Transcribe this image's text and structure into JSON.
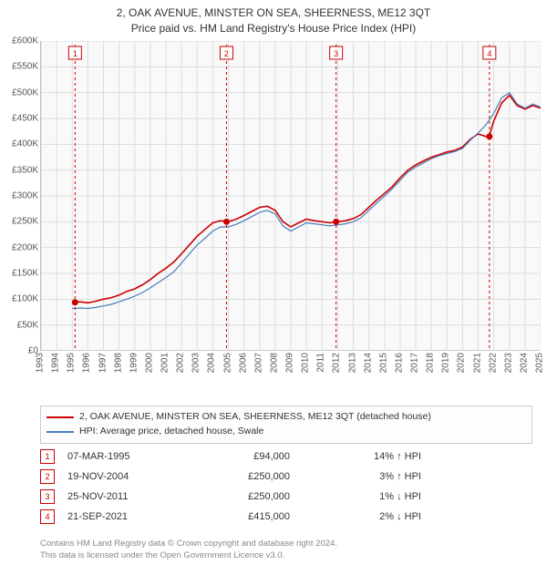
{
  "title_lines": [
    "2, OAK AVENUE, MINSTER ON SEA, SHEERNESS, ME12 3QT",
    "Price paid vs. HM Land Registry's House Price Index (HPI)"
  ],
  "chart": {
    "type": "line",
    "background_color": "#f9f9f9",
    "grid_color": "#dddddd",
    "axis_color": "#bbbbbb",
    "y_axis": {
      "min": 0,
      "max": 600000,
      "tick_step": 50000,
      "tick_labels": [
        "£0",
        "£50K",
        "£100K",
        "£150K",
        "£200K",
        "£250K",
        "£300K",
        "£350K",
        "£400K",
        "£450K",
        "£500K",
        "£550K",
        "£600K"
      ]
    },
    "x_axis": {
      "min": 1993,
      "max": 2025,
      "tick_step": 1,
      "tick_labels": [
        "1993",
        "1994",
        "1995",
        "1996",
        "1997",
        "1998",
        "1999",
        "2000",
        "2001",
        "2002",
        "2003",
        "2004",
        "2005",
        "2006",
        "2007",
        "2008",
        "2009",
        "2010",
        "2011",
        "2012",
        "2013",
        "2014",
        "2015",
        "2016",
        "2017",
        "2018",
        "2019",
        "2020",
        "2021",
        "2022",
        "2023",
        "2024",
        "2025"
      ]
    },
    "series": [
      {
        "name": "property",
        "label": "2, OAK AVENUE, MINSTER ON SEA, SHEERNESS, ME12 3QT (detached house)",
        "color": "#cc0000",
        "line_width": 1.6,
        "points": [
          [
            1995.0,
            94000
          ],
          [
            1995.5,
            95000
          ],
          [
            1996.0,
            93000
          ],
          [
            1996.5,
            96000
          ],
          [
            1997.0,
            100000
          ],
          [
            1997.5,
            103000
          ],
          [
            1998.0,
            108000
          ],
          [
            1998.5,
            115000
          ],
          [
            1999.0,
            120000
          ],
          [
            1999.5,
            128000
          ],
          [
            2000.0,
            138000
          ],
          [
            2000.5,
            150000
          ],
          [
            2001.0,
            160000
          ],
          [
            2001.5,
            172000
          ],
          [
            2002.0,
            188000
          ],
          [
            2002.5,
            205000
          ],
          [
            2003.0,
            222000
          ],
          [
            2003.5,
            235000
          ],
          [
            2004.0,
            248000
          ],
          [
            2004.5,
            252000
          ],
          [
            2005.0,
            250000
          ],
          [
            2005.5,
            255000
          ],
          [
            2006.0,
            262000
          ],
          [
            2006.5,
            270000
          ],
          [
            2007.0,
            278000
          ],
          [
            2007.5,
            280000
          ],
          [
            2008.0,
            272000
          ],
          [
            2008.5,
            250000
          ],
          [
            2009.0,
            240000
          ],
          [
            2009.5,
            248000
          ],
          [
            2010.0,
            255000
          ],
          [
            2010.5,
            252000
          ],
          [
            2011.0,
            250000
          ],
          [
            2011.5,
            248000
          ],
          [
            2012.0,
            250000
          ],
          [
            2012.5,
            252000
          ],
          [
            2013.0,
            256000
          ],
          [
            2013.5,
            264000
          ],
          [
            2014.0,
            278000
          ],
          [
            2014.5,
            292000
          ],
          [
            2015.0,
            305000
          ],
          [
            2015.5,
            318000
          ],
          [
            2016.0,
            335000
          ],
          [
            2016.5,
            350000
          ],
          [
            2017.0,
            360000
          ],
          [
            2017.5,
            368000
          ],
          [
            2018.0,
            375000
          ],
          [
            2018.5,
            380000
          ],
          [
            2019.0,
            385000
          ],
          [
            2019.5,
            388000
          ],
          [
            2020.0,
            395000
          ],
          [
            2020.5,
            410000
          ],
          [
            2021.0,
            420000
          ],
          [
            2021.5,
            415000
          ],
          [
            2021.7,
            415000
          ],
          [
            2022.0,
            445000
          ],
          [
            2022.5,
            480000
          ],
          [
            2023.0,
            495000
          ],
          [
            2023.5,
            475000
          ],
          [
            2024.0,
            468000
          ],
          [
            2024.5,
            475000
          ],
          [
            2025.0,
            470000
          ]
        ]
      },
      {
        "name": "hpi",
        "label": "HPI: Average price, detached house, Swale",
        "color": "#4a7ebb",
        "line_width": 1.2,
        "points": [
          [
            1995.0,
            82000
          ],
          [
            1995.5,
            83000
          ],
          [
            1996.0,
            82000
          ],
          [
            1996.5,
            84000
          ],
          [
            1997.0,
            87000
          ],
          [
            1997.5,
            90000
          ],
          [
            1998.0,
            95000
          ],
          [
            1998.5,
            100000
          ],
          [
            1999.0,
            106000
          ],
          [
            1999.5,
            113000
          ],
          [
            2000.0,
            122000
          ],
          [
            2000.5,
            132000
          ],
          [
            2001.0,
            142000
          ],
          [
            2001.5,
            153000
          ],
          [
            2002.0,
            170000
          ],
          [
            2002.5,
            188000
          ],
          [
            2003.0,
            205000
          ],
          [
            2003.5,
            218000
          ],
          [
            2004.0,
            232000
          ],
          [
            2004.5,
            240000
          ],
          [
            2005.0,
            240000
          ],
          [
            2005.5,
            245000
          ],
          [
            2006.0,
            252000
          ],
          [
            2006.5,
            260000
          ],
          [
            2007.0,
            268000
          ],
          [
            2007.5,
            272000
          ],
          [
            2008.0,
            265000
          ],
          [
            2008.5,
            242000
          ],
          [
            2009.0,
            232000
          ],
          [
            2009.5,
            240000
          ],
          [
            2010.0,
            248000
          ],
          [
            2010.5,
            246000
          ],
          [
            2011.0,
            244000
          ],
          [
            2011.5,
            242000
          ],
          [
            2012.0,
            244000
          ],
          [
            2012.5,
            246000
          ],
          [
            2013.0,
            250000
          ],
          [
            2013.5,
            258000
          ],
          [
            2014.0,
            272000
          ],
          [
            2014.5,
            286000
          ],
          [
            2015.0,
            300000
          ],
          [
            2015.5,
            314000
          ],
          [
            2016.0,
            330000
          ],
          [
            2016.5,
            346000
          ],
          [
            2017.0,
            356000
          ],
          [
            2017.5,
            364000
          ],
          [
            2018.0,
            372000
          ],
          [
            2018.5,
            378000
          ],
          [
            2019.0,
            382000
          ],
          [
            2019.5,
            386000
          ],
          [
            2020.0,
            392000
          ],
          [
            2020.5,
            408000
          ],
          [
            2021.0,
            422000
          ],
          [
            2021.5,
            438000
          ],
          [
            2022.0,
            460000
          ],
          [
            2022.5,
            490000
          ],
          [
            2023.0,
            500000
          ],
          [
            2023.5,
            478000
          ],
          [
            2024.0,
            470000
          ],
          [
            2024.5,
            478000
          ],
          [
            2025.0,
            472000
          ]
        ]
      }
    ],
    "event_markers": [
      {
        "n": "1",
        "year": 1995.18,
        "price": 94000
      },
      {
        "n": "2",
        "year": 2004.88,
        "price": 250000
      },
      {
        "n": "3",
        "year": 2011.9,
        "price": 250000
      },
      {
        "n": "4",
        "year": 2021.72,
        "price": 415000
      }
    ],
    "marker_style": {
      "line_color": "#cc0000",
      "line_dash": "3,3",
      "dot_color": "#cc0000",
      "dot_radius": 3.5,
      "box_size": 14,
      "box_border": "#cc0000",
      "box_text_color": "#cc0000",
      "box_bg": "#ffffff"
    }
  },
  "legend": [
    {
      "color": "#cc0000",
      "text": "2, OAK AVENUE, MINSTER ON SEA, SHEERNESS, ME12 3QT (detached house)"
    },
    {
      "color": "#4a7ebb",
      "text": "HPI: Average price, detached house, Swale"
    }
  ],
  "events_table": {
    "hpi_suffix": "HPI",
    "rows": [
      {
        "n": "1",
        "date": "07-MAR-1995",
        "price": "£94,000",
        "pct": "14%",
        "dir": "up"
      },
      {
        "n": "2",
        "date": "19-NOV-2004",
        "price": "£250,000",
        "pct": "3%",
        "dir": "up"
      },
      {
        "n": "3",
        "date": "25-NOV-2011",
        "price": "£250,000",
        "pct": "1%",
        "dir": "down"
      },
      {
        "n": "4",
        "date": "21-SEP-2021",
        "price": "£415,000",
        "pct": "2%",
        "dir": "down"
      }
    ]
  },
  "footer": [
    "Contains HM Land Registry data © Crown copyright and database right 2024.",
    "This data is licensed under the Open Government Licence v3.0."
  ],
  "style": {
    "title_fontsize": 12,
    "tick_fontsize": 10,
    "legend_fontsize": 10.5,
    "table_fontsize": 11,
    "footer_fontsize": 9.5,
    "footer_color": "#888888"
  }
}
